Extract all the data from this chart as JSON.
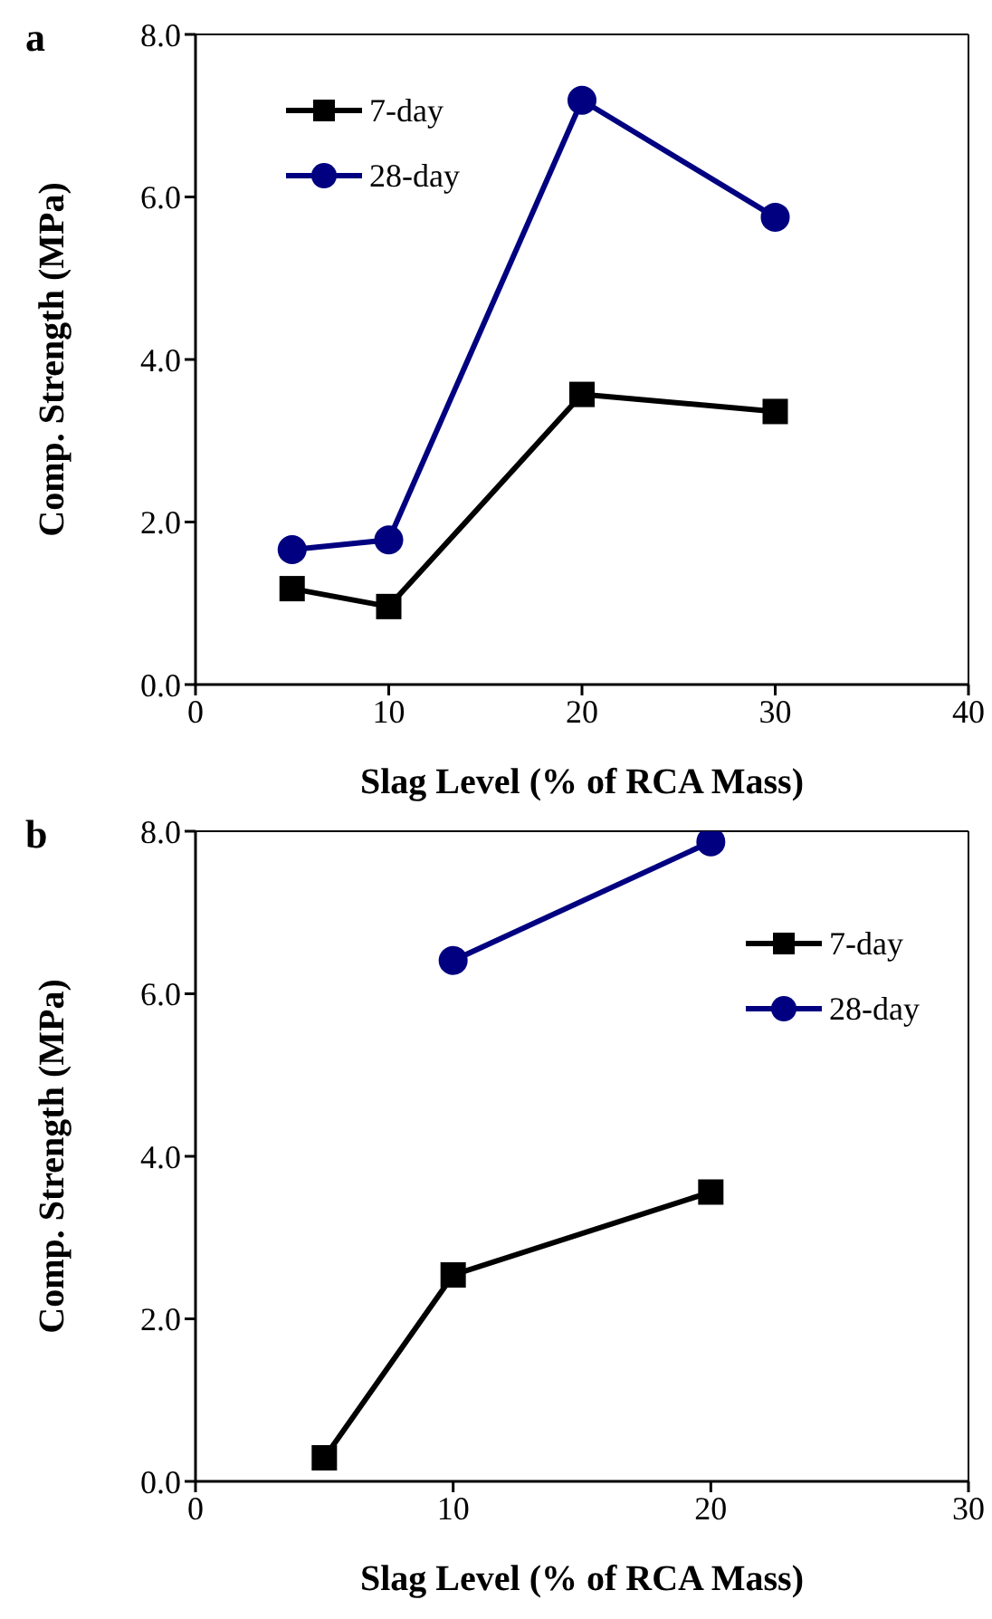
{
  "chart_data": [
    {
      "type": "line",
      "title": "a",
      "xlabel": "Slag Level (% of RCA Mass)",
      "ylabel": "Comp. Strength (MPa)",
      "xlim": [
        0,
        40
      ],
      "xticks": [
        0,
        10,
        20,
        30,
        40
      ],
      "ylim": [
        0,
        8
      ],
      "yticks": [
        {
          "value": 0,
          "label": "0.0"
        },
        {
          "value": 2,
          "label": "2.0"
        },
        {
          "value": 4,
          "label": "4.0"
        },
        {
          "value": 6,
          "label": "6.0"
        },
        {
          "value": 8,
          "label": "8.0"
        }
      ],
      "legend": "top left",
      "series": [
        {
          "name": "7-day",
          "color": "#000000",
          "marker": "square",
          "x": [
            5,
            10,
            20,
            30
          ],
          "values": [
            1.18,
            0.96,
            3.57,
            3.36
          ]
        },
        {
          "name": "28-day",
          "color": "#000080",
          "marker": "circle",
          "x": [
            5,
            10,
            20,
            30
          ],
          "values": [
            1.66,
            1.78,
            7.19,
            5.75
          ]
        }
      ]
    },
    {
      "type": "line",
      "title": "b",
      "xlabel": "Slag Level (% of RCA Mass)",
      "ylabel": "Comp. Strength (MPa)",
      "xlim": [
        0,
        30
      ],
      "xticks": [
        0,
        10,
        20,
        30
      ],
      "ylim": [
        0,
        8
      ],
      "yticks": [
        {
          "value": 0,
          "label": "0.0"
        },
        {
          "value": 2,
          "label": "2.0"
        },
        {
          "value": 4,
          "label": "4.0"
        },
        {
          "value": 6,
          "label": "6.0"
        },
        {
          "value": 8,
          "label": "8.0"
        }
      ],
      "legend": "top right",
      "series": [
        {
          "name": "7-day",
          "color": "#000000",
          "marker": "square",
          "x": [
            5,
            10,
            20
          ],
          "values": [
            0.29,
            2.54,
            3.56
          ]
        },
        {
          "name": "28-day",
          "color": "#000080",
          "marker": "circle",
          "x": [
            10,
            20
          ],
          "values": [
            6.41,
            7.87
          ]
        }
      ]
    }
  ]
}
